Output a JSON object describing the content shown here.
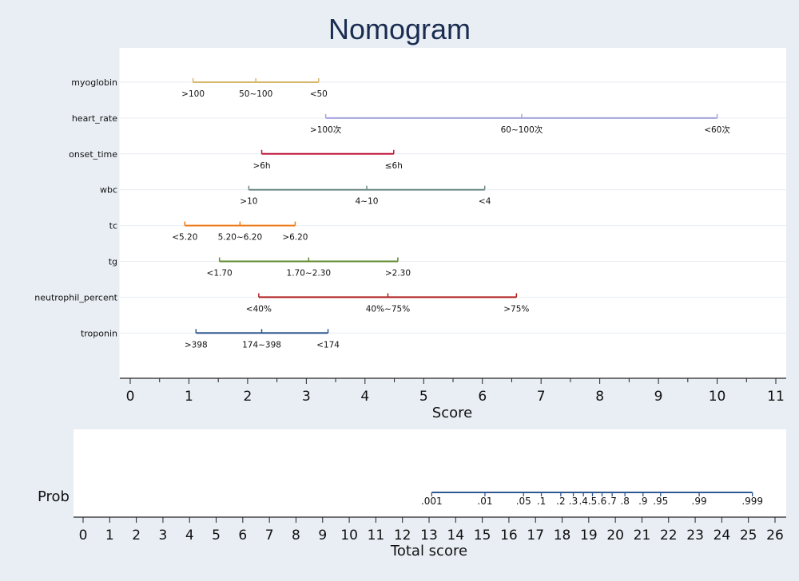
{
  "title": "Nomogram",
  "chart_data": [
    {
      "type": "nomogram-points",
      "xlabel": "Score",
      "xlim": [
        0,
        11
      ],
      "xticks": [
        0,
        1,
        2,
        3,
        4,
        5,
        6,
        7,
        8,
        9,
        10,
        11
      ],
      "variables": [
        {
          "name": "myoglobin",
          "color": "#d8b66a",
          "points": [
            {
              "label": ">100",
              "score": 1.07
            },
            {
              "label": "50~100",
              "score": 2.14
            },
            {
              "label": "<50",
              "score": 3.21
            }
          ]
        },
        {
          "name": "heart_rate",
          "color": "#a3a6dc",
          "points": [
            {
              "label": ">100次",
              "score": 3.33
            },
            {
              "label": "60~100次",
              "score": 6.67
            },
            {
              "label": "<60次",
              "score": 10.0
            }
          ]
        },
        {
          "name": "onset_time",
          "color": "#c0163a",
          "points": [
            {
              "label": ">6h",
              "score": 2.24
            },
            {
              "label": "≤6h",
              "score": 4.49
            }
          ]
        },
        {
          "name": "wbc",
          "color": "#6f8a86",
          "points": [
            {
              "label": ">10",
              "score": 2.02
            },
            {
              "label": "4~10",
              "score": 4.03
            },
            {
              "label": "<4",
              "score": 6.04
            }
          ]
        },
        {
          "name": "tc",
          "color": "#ec7a14",
          "points": [
            {
              "label": "<5.20",
              "score": 0.93
            },
            {
              "label": "5.20~6.20",
              "score": 1.87
            },
            {
              "label": ">6.20",
              "score": 2.81
            }
          ]
        },
        {
          "name": "tg",
          "color": "#5f8a2c",
          "points": [
            {
              "label": "<1.70",
              "score": 1.52
            },
            {
              "label": "1.70~2.30",
              "score": 3.04
            },
            {
              "label": ">2.30",
              "score": 4.56
            }
          ]
        },
        {
          "name": "neutrophil_percent",
          "color": "#b02020",
          "points": [
            {
              "label": "<40%",
              "score": 2.19
            },
            {
              "label": "40%~75%",
              "score": 4.39
            },
            {
              "label": ">75%",
              "score": 6.58
            }
          ]
        },
        {
          "name": "troponin",
          "color": "#2f5890",
          "points": [
            {
              "label": ">398",
              "score": 1.12
            },
            {
              "label": "174~398",
              "score": 2.24
            },
            {
              "label": "<174",
              "score": 3.37
            }
          ]
        }
      ]
    },
    {
      "type": "nomogram-probability",
      "row_label": "Prob",
      "xlabel": "Total score",
      "xlim": [
        0,
        26
      ],
      "xticks": [
        0,
        1,
        2,
        3,
        4,
        5,
        6,
        7,
        8,
        9,
        10,
        11,
        12,
        13,
        14,
        15,
        16,
        17,
        18,
        19,
        20,
        21,
        22,
        23,
        24,
        25,
        26
      ],
      "line_color": "#2f5890",
      "prob_points": [
        {
          "label": ".001",
          "score": 13.1
        },
        {
          "label": ".01",
          "score": 15.1
        },
        {
          "label": ".05",
          "score": 16.55
        },
        {
          "label": ".1",
          "score": 17.22
        },
        {
          "label": ".2",
          "score": 17.95
        },
        {
          "label": ".3",
          "score": 18.42
        },
        {
          "label": ".4",
          "score": 18.8
        },
        {
          "label": ".5",
          "score": 19.14
        },
        {
          "label": ".6",
          "score": 19.5
        },
        {
          "label": ".7",
          "score": 19.88
        },
        {
          "label": ".8",
          "score": 20.36
        },
        {
          "label": ".9",
          "score": 21.04
        },
        {
          "label": ".95",
          "score": 21.7
        },
        {
          "label": ".99",
          "score": 23.15
        },
        {
          "label": ".999",
          "score": 25.15
        }
      ]
    }
  ]
}
